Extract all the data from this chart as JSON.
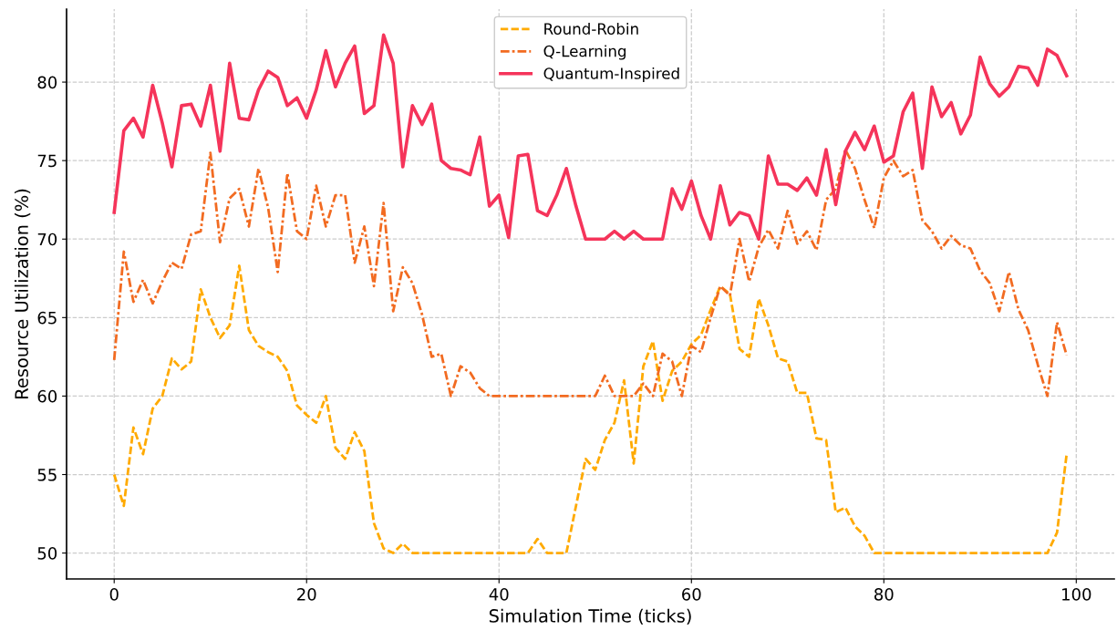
{
  "chart_data": {
    "type": "line",
    "xlabel": "Simulation Time (ticks)",
    "ylabel": "Resource Utilization (%)",
    "x": [
      0,
      1,
      2,
      3,
      4,
      5,
      6,
      7,
      8,
      9,
      10,
      11,
      12,
      13,
      14,
      15,
      16,
      17,
      18,
      19,
      20,
      21,
      22,
      23,
      24,
      25,
      26,
      27,
      28,
      29,
      30,
      31,
      32,
      33,
      34,
      35,
      36,
      37,
      38,
      39,
      40,
      41,
      42,
      43,
      44,
      45,
      46,
      47,
      48,
      49,
      50,
      51,
      52,
      53,
      54,
      55,
      56,
      57,
      58,
      59,
      60,
      61,
      62,
      63,
      64,
      65,
      66,
      67,
      68,
      69,
      70,
      71,
      72,
      73,
      74,
      75,
      76,
      77,
      78,
      79,
      80,
      81,
      82,
      83,
      84,
      85,
      86,
      87,
      88,
      89,
      90,
      91,
      92,
      93,
      94,
      95,
      96,
      97,
      98,
      99
    ],
    "series": [
      {
        "name": "Round-Robin",
        "color": "#ffaa00",
        "line_style": "dashed",
        "values": [
          55.0,
          53.0,
          58.0,
          56.3,
          59.2,
          60.0,
          62.4,
          61.7,
          62.2,
          66.8,
          65.0,
          63.7,
          64.5,
          68.3,
          64.2,
          63.2,
          62.8,
          62.5,
          61.6,
          59.4,
          58.8,
          58.3,
          60.0,
          56.7,
          56.0,
          57.7,
          56.5,
          51.9,
          50.3,
          50.0,
          50.6,
          50.0,
          50.0,
          50.0,
          50.0,
          50.0,
          50.0,
          50.0,
          50.0,
          50.0,
          50.0,
          50.0,
          50.0,
          50.0,
          50.9,
          50.0,
          50.0,
          50.0,
          53.0,
          56.0,
          55.3,
          57.2,
          58.3,
          61.0,
          55.7,
          61.9,
          63.5,
          59.7,
          61.6,
          62.2,
          63.3,
          63.9,
          65.5,
          67.0,
          66.5,
          63.0,
          62.5,
          66.2,
          64.5,
          62.4,
          62.2,
          60.2,
          60.2,
          57.3,
          57.2,
          52.6,
          52.9,
          51.7,
          51.1,
          50.0,
          50.0,
          50.0,
          50.0,
          50.0,
          50.0,
          50.0,
          50.0,
          50.0,
          50.0,
          50.0,
          50.0,
          50.0,
          50.0,
          50.0,
          50.0,
          50.0,
          50.0,
          50.0,
          51.3,
          56.3
        ]
      },
      {
        "name": "Q-Learning",
        "color": "#f26b21",
        "line_style": "dashdot",
        "values": [
          62.3,
          69.2,
          66.0,
          67.4,
          65.9,
          67.3,
          68.5,
          68.1,
          70.3,
          70.5,
          75.5,
          69.8,
          72.6,
          73.2,
          70.8,
          74.5,
          72.0,
          67.9,
          74.2,
          70.5,
          70.0,
          73.4,
          70.8,
          72.8,
          72.8,
          68.5,
          70.8,
          67.0,
          72.3,
          65.4,
          68.2,
          67.2,
          65.2,
          62.5,
          62.7,
          60.0,
          61.9,
          61.5,
          60.5,
          60.0,
          60.0,
          60.0,
          60.0,
          60.0,
          60.0,
          60.0,
          60.0,
          60.0,
          60.0,
          60.0,
          60.0,
          61.3,
          60.0,
          60.0,
          60.0,
          60.8,
          60.0,
          62.7,
          62.2,
          60.0,
          63.2,
          62.8,
          65.0,
          67.0,
          66.4,
          70.0,
          67.3,
          69.5,
          70.6,
          69.4,
          71.8,
          69.7,
          70.5,
          69.3,
          72.5,
          73.2,
          75.7,
          74.5,
          72.5,
          70.7,
          73.9,
          75.0,
          74.0,
          74.4,
          71.2,
          70.5,
          69.4,
          70.2,
          69.6,
          69.4,
          68.0,
          67.2,
          65.4,
          67.9,
          65.5,
          64.2,
          62.0,
          60.0,
          64.7,
          62.6
        ]
      },
      {
        "name": "Quantum-Inspired",
        "color": "#f5345a",
        "line_style": "solid",
        "values": [
          71.7,
          76.9,
          77.7,
          76.5,
          79.8,
          77.4,
          74.6,
          78.5,
          78.6,
          77.2,
          79.8,
          75.6,
          81.2,
          77.7,
          77.6,
          79.5,
          80.7,
          80.3,
          78.5,
          79.0,
          77.7,
          79.5,
          82.0,
          79.7,
          81.2,
          82.3,
          78.0,
          78.5,
          83.0,
          81.2,
          74.6,
          78.5,
          77.3,
          78.6,
          75.0,
          74.5,
          74.4,
          74.1,
          76.5,
          72.1,
          72.8,
          70.1,
          75.3,
          75.4,
          71.8,
          71.5,
          72.8,
          74.5,
          72.1,
          70.0,
          70.0,
          70.0,
          70.5,
          70.0,
          70.5,
          70.0,
          70.0,
          70.0,
          73.2,
          71.9,
          73.7,
          71.5,
          70.0,
          73.4,
          70.9,
          71.7,
          71.5,
          70.0,
          75.3,
          73.5,
          73.5,
          73.1,
          73.9,
          72.8,
          75.7,
          72.2,
          75.6,
          76.8,
          75.7,
          77.2,
          74.9,
          75.3,
          78.1,
          79.3,
          74.5,
          79.7,
          77.8,
          78.7,
          76.7,
          77.9,
          81.6,
          79.9,
          79.1,
          79.7,
          81.0,
          80.9,
          79.8,
          82.1,
          81.7,
          80.4
        ]
      }
    ],
    "xlim": [
      -4.95,
      103.95
    ],
    "xticks": [
      0,
      20,
      40,
      60,
      80,
      100
    ],
    "ylim": [
      48.35,
      84.65
    ],
    "yticks": [
      50,
      55,
      60,
      65,
      70,
      75,
      80
    ],
    "grid": true,
    "legend": "top center"
  }
}
